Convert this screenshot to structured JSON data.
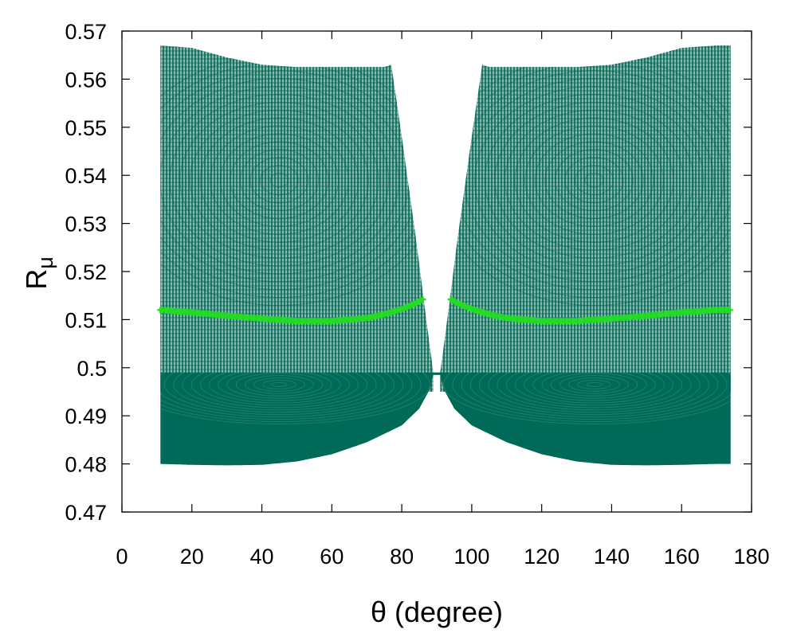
{
  "chart_data": {
    "type": "scatter",
    "title": "",
    "xlabel": "θ (degree)",
    "ylabel_main": "R",
    "ylabel_sub": "μ",
    "xlim": [
      0,
      180
    ],
    "ylim": [
      0.47,
      0.57
    ],
    "x_ticks": [
      0,
      20,
      40,
      60,
      80,
      100,
      120,
      140,
      160,
      180
    ],
    "x_tick_labels": [
      "0",
      "20",
      "40",
      "60",
      "80",
      "100",
      "120",
      "140",
      "160",
      "180"
    ],
    "y_ticks": [
      0.47,
      0.48,
      0.49,
      0.5,
      0.51,
      0.52,
      0.53,
      0.54,
      0.55,
      0.56,
      0.57
    ],
    "y_tick_labels": [
      "0.47",
      "0.48",
      "0.49",
      "0.5",
      "0.51",
      "0.52",
      "0.53",
      "0.54",
      "0.55",
      "0.56",
      "0.57"
    ],
    "grid": false,
    "legend": "none",
    "colors": {
      "scan_points": "#006a58",
      "highlight_curve": "#22dd22"
    },
    "series": [
      {
        "role": "scan-region",
        "marker": "+",
        "x_range": [
          11,
          174
        ],
        "gap_x_range": [
          89,
          91
        ],
        "pinch_point": {
          "x": 90,
          "y": 0.5
        },
        "upper_boundary": {
          "x": [
            11,
            20,
            30,
            40,
            50,
            60,
            70,
            75,
            77,
            80,
            84,
            87,
            89,
            91,
            93,
            96,
            100,
            103,
            105,
            110,
            120,
            130,
            140,
            150,
            160,
            170,
            174
          ],
          "y": [
            0.567,
            0.5665,
            0.5645,
            0.563,
            0.5625,
            0.5625,
            0.5625,
            0.5625,
            0.563,
            0.548,
            0.527,
            0.51,
            0.499,
            0.499,
            0.51,
            0.527,
            0.548,
            0.563,
            0.5625,
            0.5625,
            0.5625,
            0.5625,
            0.563,
            0.5645,
            0.5665,
            0.567,
            0.567
          ]
        },
        "lower_boundary": {
          "x": [
            11,
            20,
            30,
            40,
            50,
            60,
            70,
            80,
            85,
            88,
            89,
            91,
            92,
            95,
            100,
            110,
            120,
            130,
            140,
            150,
            160,
            170,
            174
          ],
          "y": [
            0.48,
            0.4798,
            0.4797,
            0.4798,
            0.4805,
            0.482,
            0.4845,
            0.488,
            0.4915,
            0.4955,
            0.4985,
            0.4985,
            0.4955,
            0.4915,
            0.488,
            0.4845,
            0.482,
            0.4805,
            0.4798,
            0.4797,
            0.4798,
            0.48,
            0.48
          ]
        }
      },
      {
        "role": "highlight-curve",
        "marker": "+",
        "x": [
          11,
          20,
          30,
          40,
          50,
          60,
          70,
          75,
          80,
          84,
          86,
          94,
          96,
          100,
          105,
          110,
          120,
          130,
          140,
          150,
          160,
          170,
          174
        ],
        "y": [
          0.512,
          0.5115,
          0.5108,
          0.5102,
          0.5097,
          0.5097,
          0.5103,
          0.5111,
          0.5122,
          0.5134,
          0.5142,
          0.5142,
          0.5134,
          0.5122,
          0.5111,
          0.5103,
          0.5097,
          0.5097,
          0.5102,
          0.5108,
          0.5115,
          0.512,
          0.512
        ]
      }
    ]
  }
}
